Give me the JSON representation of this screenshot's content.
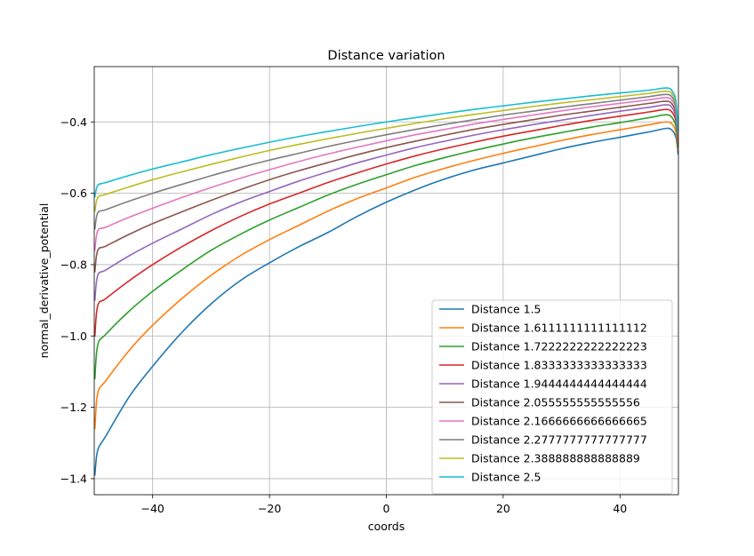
{
  "chart_data": {
    "type": "line",
    "title": "Distance variation",
    "xlabel": "coords",
    "ylabel": "normal_derivative_potential",
    "xlim": [
      -50,
      50
    ],
    "ylim": [
      -1.445,
      -0.245
    ],
    "xticks": [
      -40,
      -20,
      0,
      20,
      40
    ],
    "xtick_labels": [
      "−40",
      "−20",
      "0",
      "20",
      "40"
    ],
    "yticks": [
      -1.4,
      -1.2,
      -1.0,
      -0.8,
      -0.6,
      -0.4
    ],
    "ytick_labels": [
      "−1.4",
      "−1.2",
      "−1.0",
      "−0.8",
      "−0.6",
      "−0.4"
    ],
    "grid": true,
    "legend_position": "lower right",
    "series": [
      {
        "name": "Distance 1.5",
        "color": "#1f77b4",
        "points": [
          [
            -49.9,
            -1.39
          ],
          [
            -49.4,
            -1.32
          ],
          [
            -48,
            -1.28
          ],
          [
            -44,
            -1.17
          ],
          [
            -40,
            -1.085
          ],
          [
            -35,
            -0.99
          ],
          [
            -30,
            -0.91
          ],
          [
            -25,
            -0.845
          ],
          [
            -20,
            -0.795
          ],
          [
            -15,
            -0.75
          ],
          [
            -10,
            -0.71
          ],
          [
            -5,
            -0.665
          ],
          [
            0,
            -0.625
          ],
          [
            5,
            -0.59
          ],
          [
            10,
            -0.56
          ],
          [
            15,
            -0.535
          ],
          [
            20,
            -0.515
          ],
          [
            25,
            -0.495
          ],
          [
            30,
            -0.475
          ],
          [
            35,
            -0.458
          ],
          [
            40,
            -0.443
          ],
          [
            45,
            -0.428
          ],
          [
            48,
            -0.418
          ],
          [
            49,
            -0.425
          ],
          [
            49.6,
            -0.445
          ],
          [
            49.95,
            -0.49
          ]
        ]
      },
      {
        "name": "Distance 1.6111111111111112",
        "color": "#ff7f0e",
        "points": [
          [
            -49.9,
            -1.26
          ],
          [
            -49.4,
            -1.16
          ],
          [
            -48,
            -1.125
          ],
          [
            -44,
            -1.04
          ],
          [
            -40,
            -0.97
          ],
          [
            -35,
            -0.895
          ],
          [
            -30,
            -0.83
          ],
          [
            -25,
            -0.775
          ],
          [
            -20,
            -0.73
          ],
          [
            -15,
            -0.69
          ],
          [
            -10,
            -0.65
          ],
          [
            -5,
            -0.615
          ],
          [
            0,
            -0.585
          ],
          [
            5,
            -0.555
          ],
          [
            10,
            -0.53
          ],
          [
            15,
            -0.508
          ],
          [
            20,
            -0.488
          ],
          [
            25,
            -0.47
          ],
          [
            30,
            -0.452
          ],
          [
            35,
            -0.436
          ],
          [
            40,
            -0.422
          ],
          [
            45,
            -0.408
          ],
          [
            48,
            -0.4
          ],
          [
            49,
            -0.408
          ],
          [
            49.6,
            -0.43
          ],
          [
            49.95,
            -0.48
          ]
        ]
      },
      {
        "name": "Distance 1.7222222222222223",
        "color": "#2ca02c",
        "points": [
          [
            -49.9,
            -1.12
          ],
          [
            -49.4,
            -1.025
          ],
          [
            -48,
            -0.995
          ],
          [
            -44,
            -0.93
          ],
          [
            -40,
            -0.875
          ],
          [
            -35,
            -0.815
          ],
          [
            -30,
            -0.76
          ],
          [
            -25,
            -0.715
          ],
          [
            -20,
            -0.675
          ],
          [
            -15,
            -0.64
          ],
          [
            -10,
            -0.605
          ],
          [
            -5,
            -0.575
          ],
          [
            0,
            -0.548
          ],
          [
            5,
            -0.522
          ],
          [
            10,
            -0.5
          ],
          [
            15,
            -0.48
          ],
          [
            20,
            -0.462
          ],
          [
            25,
            -0.445
          ],
          [
            30,
            -0.43
          ],
          [
            35,
            -0.415
          ],
          [
            40,
            -0.402
          ],
          [
            45,
            -0.388
          ],
          [
            48,
            -0.38
          ],
          [
            49,
            -0.39
          ],
          [
            49.6,
            -0.415
          ],
          [
            49.95,
            -0.47
          ]
        ]
      },
      {
        "name": "Distance 1.8333333333333333",
        "color": "#d62728",
        "points": [
          [
            -49.9,
            -1.0
          ],
          [
            -49.4,
            -0.915
          ],
          [
            -48,
            -0.895
          ],
          [
            -44,
            -0.845
          ],
          [
            -40,
            -0.8
          ],
          [
            -35,
            -0.75
          ],
          [
            -30,
            -0.705
          ],
          [
            -25,
            -0.665
          ],
          [
            -20,
            -0.63
          ],
          [
            -15,
            -0.6
          ],
          [
            -10,
            -0.57
          ],
          [
            -5,
            -0.543
          ],
          [
            0,
            -0.518
          ],
          [
            5,
            -0.495
          ],
          [
            10,
            -0.475
          ],
          [
            15,
            -0.457
          ],
          [
            20,
            -0.44
          ],
          [
            25,
            -0.425
          ],
          [
            30,
            -0.41
          ],
          [
            35,
            -0.396
          ],
          [
            40,
            -0.384
          ],
          [
            45,
            -0.372
          ],
          [
            48,
            -0.365
          ],
          [
            49,
            -0.375
          ],
          [
            49.6,
            -0.4
          ],
          [
            49.95,
            -0.46
          ]
        ]
      },
      {
        "name": "Distance 1.9444444444444444",
        "color": "#9467bd",
        "points": [
          [
            -49.9,
            -0.9
          ],
          [
            -49.4,
            -0.83
          ],
          [
            -48,
            -0.815
          ],
          [
            -44,
            -0.775
          ],
          [
            -40,
            -0.74
          ],
          [
            -35,
            -0.7
          ],
          [
            -30,
            -0.66
          ],
          [
            -25,
            -0.625
          ],
          [
            -20,
            -0.595
          ],
          [
            -15,
            -0.566
          ],
          [
            -10,
            -0.54
          ],
          [
            -5,
            -0.515
          ],
          [
            0,
            -0.493
          ],
          [
            5,
            -0.472
          ],
          [
            10,
            -0.454
          ],
          [
            15,
            -0.437
          ],
          [
            20,
            -0.422
          ],
          [
            25,
            -0.408
          ],
          [
            30,
            -0.395
          ],
          [
            35,
            -0.382
          ],
          [
            40,
            -0.37
          ],
          [
            45,
            -0.359
          ],
          [
            48,
            -0.352
          ],
          [
            49,
            -0.362
          ],
          [
            49.6,
            -0.39
          ],
          [
            49.95,
            -0.455
          ]
        ]
      },
      {
        "name": "Distance 2.055555555555556",
        "color": "#8c564b",
        "points": [
          [
            -49.9,
            -0.82
          ],
          [
            -49.4,
            -0.76
          ],
          [
            -48,
            -0.748
          ],
          [
            -44,
            -0.715
          ],
          [
            -40,
            -0.685
          ],
          [
            -35,
            -0.652
          ],
          [
            -30,
            -0.62
          ],
          [
            -25,
            -0.59
          ],
          [
            -20,
            -0.562
          ],
          [
            -15,
            -0.537
          ],
          [
            -10,
            -0.514
          ],
          [
            -5,
            -0.492
          ],
          [
            0,
            -0.472
          ],
          [
            5,
            -0.454
          ],
          [
            10,
            -0.437
          ],
          [
            15,
            -0.421
          ],
          [
            20,
            -0.407
          ],
          [
            25,
            -0.394
          ],
          [
            30,
            -0.381
          ],
          [
            35,
            -0.37
          ],
          [
            40,
            -0.359
          ],
          [
            45,
            -0.348
          ],
          [
            48,
            -0.342
          ],
          [
            49,
            -0.352
          ],
          [
            49.6,
            -0.38
          ],
          [
            49.95,
            -0.45
          ]
        ]
      },
      {
        "name": "Distance 2.1666666666666665",
        "color": "#e377c2",
        "points": [
          [
            -49.9,
            -0.76
          ],
          [
            -49.4,
            -0.705
          ],
          [
            -48,
            -0.695
          ],
          [
            -44,
            -0.667
          ],
          [
            -40,
            -0.642
          ],
          [
            -35,
            -0.612
          ],
          [
            -30,
            -0.584
          ],
          [
            -25,
            -0.558
          ],
          [
            -20,
            -0.534
          ],
          [
            -15,
            -0.511
          ],
          [
            -10,
            -0.49
          ],
          [
            -5,
            -0.471
          ],
          [
            0,
            -0.453
          ],
          [
            5,
            -0.436
          ],
          [
            10,
            -0.421
          ],
          [
            15,
            -0.406
          ],
          [
            20,
            -0.393
          ],
          [
            25,
            -0.381
          ],
          [
            30,
            -0.369
          ],
          [
            35,
            -0.358
          ],
          [
            40,
            -0.348
          ],
          [
            45,
            -0.338
          ],
          [
            48,
            -0.332
          ],
          [
            49,
            -0.342
          ],
          [
            49.6,
            -0.37
          ],
          [
            49.95,
            -0.445
          ]
        ]
      },
      {
        "name": "Distance 2.2777777777777777",
        "color": "#7f7f7f",
        "points": [
          [
            -49.9,
            -0.7
          ],
          [
            -49.4,
            -0.655
          ],
          [
            -48,
            -0.646
          ],
          [
            -44,
            -0.622
          ],
          [
            -40,
            -0.6
          ],
          [
            -35,
            -0.575
          ],
          [
            -30,
            -0.551
          ],
          [
            -25,
            -0.528
          ],
          [
            -20,
            -0.507
          ],
          [
            -15,
            -0.488
          ],
          [
            -10,
            -0.469
          ],
          [
            -5,
            -0.452
          ],
          [
            0,
            -0.436
          ],
          [
            5,
            -0.421
          ],
          [
            10,
            -0.407
          ],
          [
            15,
            -0.394
          ],
          [
            20,
            -0.381
          ],
          [
            25,
            -0.37
          ],
          [
            30,
            -0.359
          ],
          [
            35,
            -0.349
          ],
          [
            40,
            -0.339
          ],
          [
            45,
            -0.329
          ],
          [
            48,
            -0.323
          ],
          [
            49,
            -0.333
          ],
          [
            49.6,
            -0.362
          ],
          [
            49.95,
            -0.44
          ]
        ]
      },
      {
        "name": "Distance 2.388888888888889",
        "color": "#bcbd22",
        "points": [
          [
            -49.9,
            -0.65
          ],
          [
            -49.4,
            -0.612
          ],
          [
            -48,
            -0.603
          ],
          [
            -44,
            -0.582
          ],
          [
            -40,
            -0.562
          ],
          [
            -35,
            -0.54
          ],
          [
            -30,
            -0.519
          ],
          [
            -25,
            -0.499
          ],
          [
            -20,
            -0.48
          ],
          [
            -15,
            -0.463
          ],
          [
            -10,
            -0.447
          ],
          [
            -5,
            -0.432
          ],
          [
            0,
            -0.418
          ],
          [
            5,
            -0.404
          ],
          [
            10,
            -0.391
          ],
          [
            15,
            -0.379
          ],
          [
            20,
            -0.368
          ],
          [
            25,
            -0.357
          ],
          [
            30,
            -0.347
          ],
          [
            35,
            -0.338
          ],
          [
            40,
            -0.329
          ],
          [
            45,
            -0.32
          ],
          [
            48,
            -0.314
          ],
          [
            49,
            -0.324
          ],
          [
            49.6,
            -0.355
          ],
          [
            49.95,
            -0.435
          ]
        ]
      },
      {
        "name": "Distance 2.5",
        "color": "#17becf",
        "points": [
          [
            -49.9,
            -0.61
          ],
          [
            -49.4,
            -0.578
          ],
          [
            -48,
            -0.57
          ],
          [
            -44,
            -0.55
          ],
          [
            -40,
            -0.532
          ],
          [
            -35,
            -0.512
          ],
          [
            -30,
            -0.492
          ],
          [
            -25,
            -0.474
          ],
          [
            -20,
            -0.457
          ],
          [
            -15,
            -0.441
          ],
          [
            -10,
            -0.427
          ],
          [
            -5,
            -0.413
          ],
          [
            0,
            -0.4
          ],
          [
            5,
            -0.388
          ],
          [
            10,
            -0.376
          ],
          [
            15,
            -0.365
          ],
          [
            20,
            -0.355
          ],
          [
            25,
            -0.345
          ],
          [
            30,
            -0.336
          ],
          [
            35,
            -0.327
          ],
          [
            40,
            -0.319
          ],
          [
            45,
            -0.311
          ],
          [
            48,
            -0.305
          ],
          [
            49,
            -0.315
          ],
          [
            49.6,
            -0.345
          ],
          [
            49.95,
            -0.43
          ]
        ]
      }
    ]
  }
}
